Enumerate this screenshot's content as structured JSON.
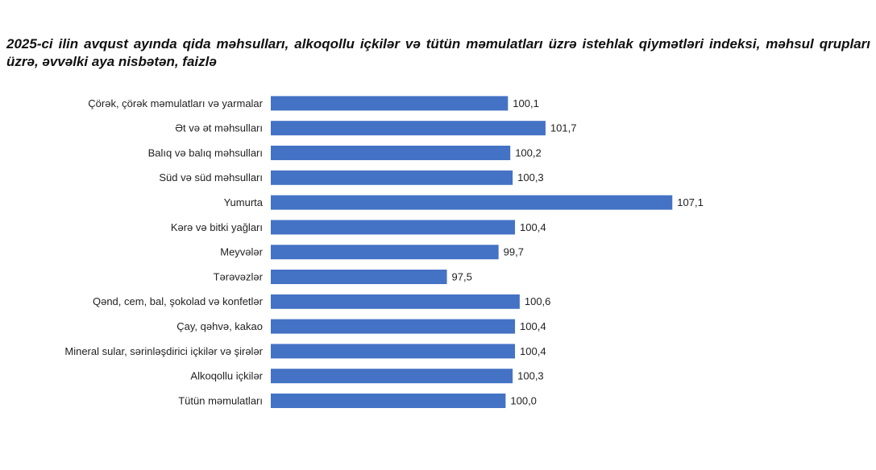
{
  "chart_data": {
    "type": "bar",
    "orientation": "horizontal",
    "title": "2025-ci ilin avqust ayında qida məhsulları, alkoqollu içkilər və tütün məmulatları üzrə istehlak qiymətləri indeksi, məhsul qrupları üzrə, əvvəlki aya nisbətən, faizlə",
    "categories": [
      "Çörək, çörək məmulatları və yarmalar",
      "Ət və ət məhsulları",
      "Balıq və balıq məhsulları",
      "Süd və süd məhsulları",
      "Yumurta",
      "Kərə və bitki yağları",
      "Meyvələr",
      "Tərəvəzlər",
      "Qənd, cem, bal, şokolad və konfetlər",
      "Çay, qəhvə, kakao",
      "Mineral sular, sərinləşdirici içkilər və şirələr",
      "Alkoqollu içkilər",
      "Tütün məmulatları"
    ],
    "values": [
      100.1,
      101.7,
      100.2,
      100.3,
      107.1,
      100.4,
      99.7,
      97.5,
      100.6,
      100.4,
      100.4,
      100.3,
      100.0
    ],
    "value_labels": [
      "100,1",
      "101,7",
      "100,2",
      "100,3",
      "107,1",
      "100,4",
      "99,7",
      "97,5",
      "100,6",
      "100,4",
      "100,4",
      "100,3",
      "100,0"
    ],
    "color": "#4472c4",
    "xlim": [
      90,
      108
    ]
  }
}
